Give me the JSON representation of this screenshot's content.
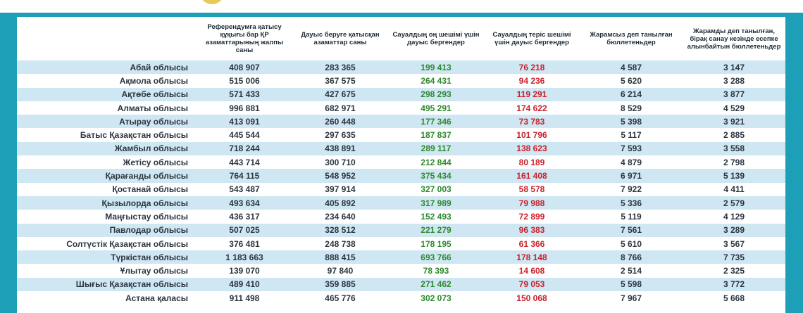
{
  "headers": [
    "",
    "Референдумға қатысу құқығы бар ҚР азаматтарының жалпы саны",
    "Дауыс беруге қатысқан азаматтар саны",
    "Сауалдың оң шешімі үшін дауыс бергендер",
    "Сауалдың теріс шешімі үшін дауыс бергендер",
    "Жарамсыз деп танылған бюллетеньдер",
    "Жарамды деп танылған, бірақ санау кезінде есепке алынбайтын бюллетеньдер"
  ],
  "rows": [
    {
      "name": "Абай облысы",
      "eligible": "408 907",
      "voted": "283 365",
      "yes": "199 413",
      "no": "76 218",
      "invalid": "4 587",
      "uncounted": "3 147"
    },
    {
      "name": "Ақмола облысы",
      "eligible": "515 006",
      "voted": "367 575",
      "yes": "264 431",
      "no": "94 236",
      "invalid": "5 620",
      "uncounted": "3 288"
    },
    {
      "name": "Ақтөбе облысы",
      "eligible": "571 433",
      "voted": "427 675",
      "yes": "298 293",
      "no": "119 291",
      "invalid": "6 214",
      "uncounted": "3 877"
    },
    {
      "name": "Алматы облысы",
      "eligible": "996 881",
      "voted": "682 971",
      "yes": "495 291",
      "no": "174 622",
      "invalid": "8 529",
      "uncounted": "4 529"
    },
    {
      "name": "Атырау облысы",
      "eligible": "413 091",
      "voted": "260 448",
      "yes": "177 346",
      "no": "73 783",
      "invalid": "5 398",
      "uncounted": "3 921"
    },
    {
      "name": "Батыс Қазақстан облысы",
      "eligible": "445 544",
      "voted": "297 635",
      "yes": "187 837",
      "no": "101 796",
      "invalid": "5 117",
      "uncounted": "2 885"
    },
    {
      "name": "Жамбыл облысы",
      "eligible": "718 244",
      "voted": "438 891",
      "yes": "289 117",
      "no": "138 623",
      "invalid": "7 593",
      "uncounted": "3 558"
    },
    {
      "name": "Жетісу облысы",
      "eligible": "443 714",
      "voted": "300 710",
      "yes": "212 844",
      "no": "80 189",
      "invalid": "4 879",
      "uncounted": "2 798"
    },
    {
      "name": "Қарағанды облысы",
      "eligible": "764 115",
      "voted": "548 952",
      "yes": "375 434",
      "no": "161 408",
      "invalid": "6 971",
      "uncounted": "5 139"
    },
    {
      "name": "Қостанай облысы",
      "eligible": "543 487",
      "voted": "397 914",
      "yes": "327 003",
      "no": "58 578",
      "invalid": "7 922",
      "uncounted": "4 411"
    },
    {
      "name": "Қызылорда облысы",
      "eligible": "493 634",
      "voted": "405 892",
      "yes": "317 989",
      "no": "79 988",
      "invalid": "5 336",
      "uncounted": "2 579"
    },
    {
      "name": "Маңғыстау облысы",
      "eligible": "436 317",
      "voted": "234 640",
      "yes": "152 493",
      "no": "72 899",
      "invalid": "5 119",
      "uncounted": "4 129"
    },
    {
      "name": "Павлодар облысы",
      "eligible": "507 025",
      "voted": "328 512",
      "yes": "221 279",
      "no": "96 383",
      "invalid": "7 561",
      "uncounted": "3 289"
    },
    {
      "name": "Солтүстік Қазақстан облысы",
      "eligible": "376 481",
      "voted": "248 738",
      "yes": "178 195",
      "no": "61 366",
      "invalid": "5 610",
      "uncounted": "3 567"
    },
    {
      "name": "Түркістан облысы",
      "eligible": "1 183 663",
      "voted": "888 415",
      "yes": "693 766",
      "no": "178 148",
      "invalid": "8 766",
      "uncounted": "7 735"
    },
    {
      "name": "Ұлытау облысы",
      "eligible": "139 070",
      "voted": "97 840",
      "yes": "78 393",
      "no": "14 608",
      "invalid": "2 514",
      "uncounted": "2 325"
    },
    {
      "name": "Шығыс Қазақстан облысы",
      "eligible": "489 410",
      "voted": "359 885",
      "yes": "271 462",
      "no": "79 053",
      "invalid": "5 598",
      "uncounted": "3 772"
    },
    {
      "name": "Астана қаласы",
      "eligible": "911 498",
      "voted": "465 776",
      "yes": "302 073",
      "no": "150 068",
      "invalid": "7 967",
      "uncounted": "5 668"
    }
  ],
  "colors": {
    "background": "#1e9fb8",
    "stripe": "#cfe6f3",
    "yes": "#2d8a2d",
    "no": "#c8232b"
  },
  "icons": {
    "prev": "chevron-left-icon",
    "next": "chevron-right-icon"
  }
}
